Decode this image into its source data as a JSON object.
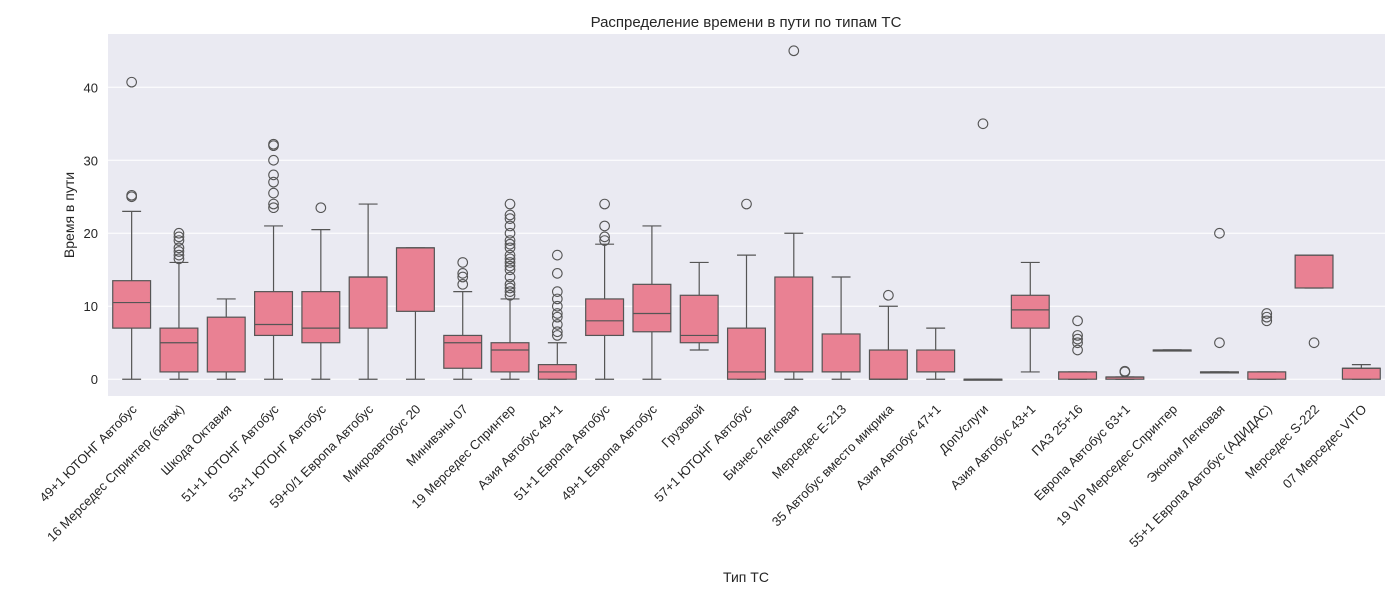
{
  "chart_data": {
    "type": "box",
    "title": "Распределение времени в пути по типам ТС",
    "xlabel": "Тип ТС",
    "ylabel": "Время в пути",
    "ylim": [
      -2.3,
      47.3
    ],
    "yticks": [
      0,
      10,
      20,
      30,
      40
    ],
    "grid": true,
    "colors": {
      "box": "#e98193",
      "line": "#555555",
      "background": "#eaeaf2",
      "grid": "#ffffff"
    },
    "categories": [
      "49+1 ЮТОНГ Автобус",
      "16 Мерседес Спринтер (багаж)",
      "Шкода Октавия",
      "51+1 ЮТОНГ Автобус",
      "53+1 ЮТОНГ Автобус",
      "59+0/1 Европа Автобус",
      "Микроавтобус 20",
      "Минивэны 07",
      "19 Мерседес Спринтер",
      "Азия Автобус 49+1",
      "51+1 Европа Автобус",
      "49+1 Европа Автобус",
      "Грузовой",
      "57+1 ЮТОНГ Автобус",
      "Бизнес Легковая",
      "Мерседес E-213",
      "35 Автобус вместо микрика",
      "Азия Автобус 47+1",
      "ДопУслуги",
      "Азия Автобус 43+1",
      "ПАЗ 25+16",
      "Европа Автобус 63+1",
      "19 VIP Мерседес Спринтер",
      "Эконом Легковая",
      "55+1 Европа Автобус (АДИДАС)",
      "Мерседес S-222",
      "07 Мерседес VITO"
    ],
    "boxes": [
      {
        "whislo": 0,
        "q1": 7,
        "med": 10.5,
        "q3": 13.5,
        "whishi": 23,
        "fliers": [
          25,
          25.2,
          40.7
        ]
      },
      {
        "whislo": 0,
        "q1": 1,
        "med": 5,
        "q3": 7,
        "whishi": 16,
        "fliers": [
          16.5,
          17,
          17.5,
          18,
          19,
          19.5,
          20
        ]
      },
      {
        "whislo": 0,
        "q1": 1,
        "med": 1,
        "q3": 8.5,
        "whishi": 11,
        "fliers": []
      },
      {
        "whislo": 0,
        "q1": 6,
        "med": 7.5,
        "q3": 12,
        "whishi": 21,
        "fliers": [
          23.5,
          24,
          25.5,
          27,
          28,
          30,
          32,
          32.2
        ]
      },
      {
        "whislo": 0,
        "q1": 5,
        "med": 7,
        "q3": 12,
        "whishi": 20.5,
        "fliers": [
          23.5
        ]
      },
      {
        "whislo": 0,
        "q1": 7,
        "med": 14,
        "q3": 14,
        "whishi": 24,
        "fliers": []
      },
      {
        "whislo": 0,
        "q1": 9.3,
        "med": 18,
        "q3": 18,
        "whishi": 18,
        "fliers": []
      },
      {
        "whislo": 0,
        "q1": 1.5,
        "med": 5,
        "q3": 6,
        "whishi": 12,
        "fliers": [
          13,
          14,
          14.5,
          16
        ]
      },
      {
        "whislo": 0,
        "q1": 1,
        "med": 4,
        "q3": 5,
        "whishi": 11,
        "fliers": [
          11.5,
          12,
          12.5,
          13,
          14,
          15,
          15.5,
          16,
          16.5,
          17,
          18,
          18.5,
          19,
          20,
          21,
          22,
          22.5,
          24
        ]
      },
      {
        "whislo": 0,
        "q1": 0,
        "med": 1,
        "q3": 2,
        "whishi": 5,
        "fliers": [
          6,
          6.5,
          7.5,
          8.5,
          9,
          10,
          11,
          12,
          14.5,
          17
        ]
      },
      {
        "whislo": 0,
        "q1": 6,
        "med": 8,
        "q3": 11,
        "whishi": 18.5,
        "fliers": [
          19,
          19.5,
          21,
          24
        ]
      },
      {
        "whislo": 0,
        "q1": 6.5,
        "med": 9,
        "q3": 13,
        "whishi": 21,
        "fliers": []
      },
      {
        "whislo": 4,
        "q1": 5,
        "med": 6,
        "q3": 11.5,
        "whishi": 16,
        "fliers": []
      },
      {
        "whislo": 0,
        "q1": 0,
        "med": 1,
        "q3": 7,
        "whishi": 17,
        "fliers": [
          24
        ]
      },
      {
        "whislo": 0,
        "q1": 1,
        "med": 1,
        "q3": 14,
        "whishi": 20,
        "fliers": [
          45
        ]
      },
      {
        "whislo": 0,
        "q1": 1,
        "med": 1,
        "q3": 6.2,
        "whishi": 14,
        "fliers": []
      },
      {
        "whislo": 0,
        "q1": 0,
        "med": 0,
        "q3": 4,
        "whishi": 10,
        "fliers": [
          11.5
        ]
      },
      {
        "whislo": 0,
        "q1": 1,
        "med": 1,
        "q3": 4,
        "whishi": 7,
        "fliers": []
      },
      {
        "whislo": 0,
        "q1": 0,
        "med": 0,
        "q3": 0,
        "whishi": 0,
        "fliers": [
          35
        ]
      },
      {
        "whislo": 1,
        "q1": 7,
        "med": 9.5,
        "q3": 11.5,
        "whishi": 16,
        "fliers": []
      },
      {
        "whislo": 0,
        "q1": 0,
        "med": 1,
        "q3": 1,
        "whishi": 1,
        "fliers": [
          4,
          5,
          5.5,
          6,
          8
        ]
      },
      {
        "whislo": 0,
        "q1": 0,
        "med": 0.3,
        "q3": 0.3,
        "whishi": 0.3,
        "fliers": [
          1,
          1.1
        ]
      },
      {
        "whislo": 4,
        "q1": 4,
        "med": 4,
        "q3": 4,
        "whishi": 4,
        "fliers": []
      },
      {
        "whislo": 1,
        "q1": 1,
        "med": 1,
        "q3": 1,
        "whishi": 1,
        "fliers": [
          5,
          20
        ]
      },
      {
        "whislo": 0,
        "q1": 0,
        "med": 1,
        "q3": 1,
        "whishi": 1,
        "fliers": [
          8,
          8.5,
          9
        ]
      },
      {
        "whislo": 12.5,
        "q1": 12.5,
        "med": 17,
        "q3": 17,
        "whishi": 17,
        "fliers": [
          5
        ]
      },
      {
        "whislo": 0,
        "q1": 0,
        "med": 1.5,
        "q3": 1.5,
        "whishi": 2,
        "fliers": []
      }
    ]
  }
}
